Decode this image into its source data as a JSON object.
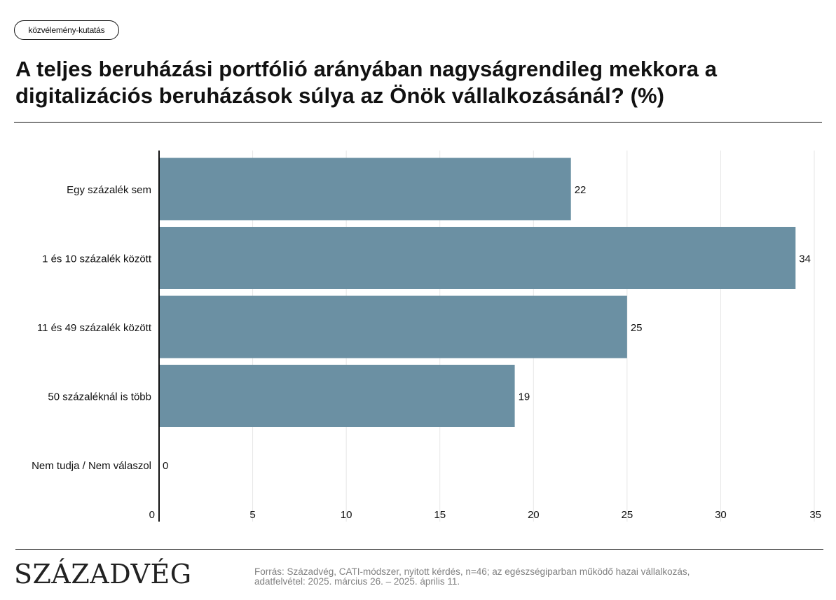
{
  "tag": "közvélemény-kutatás",
  "title": "A teljes beruházási portfólió arányában nagyságrendileg mekkora a digitalizációs beruházások súlya az Önök vállalkozásánál? (%)",
  "brand": "Századvég",
  "source_line1": "Forrás: Századvég, CATI-módszer, nyitott kérdés, n=46; az egészségiparban működő hazai vállalkozás,",
  "source_line2": "adatfelvétel: 2025. március 26. – 2025. április 11.",
  "colors": {
    "bar": "#6b90a3",
    "grid": "#e6e6e6",
    "axis": "#111111"
  },
  "chart_data": {
    "type": "bar",
    "orientation": "horizontal",
    "categories": [
      "Egy százalék sem",
      "1 és 10 százalék között",
      "11 és 49 százalék között",
      "50 százaléknál is több",
      "Nem tudja / Nem válaszol"
    ],
    "values": [
      22,
      34,
      25,
      19,
      0
    ],
    "xlim": [
      0,
      35
    ],
    "xticks": [
      "0",
      "5",
      "10",
      "15",
      "20",
      "25",
      "30",
      "35"
    ],
    "grid": "vertical",
    "data_labels": true
  }
}
